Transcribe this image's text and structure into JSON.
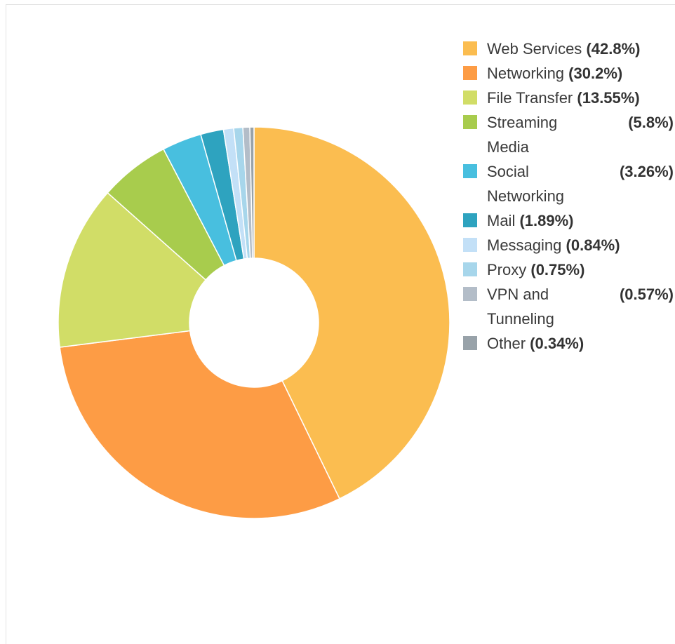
{
  "chart_data": {
    "type": "pie",
    "donut": true,
    "legend_position": "right",
    "categories": [
      "Web Services",
      "Networking",
      "File Transfer",
      "Streaming Media",
      "Social Networking",
      "Mail",
      "Messaging",
      "Proxy",
      "VPN and Tunneling",
      "Other"
    ],
    "values": [
      42.8,
      30.2,
      13.55,
      5.8,
      3.26,
      1.89,
      0.84,
      0.75,
      0.57,
      0.34
    ],
    "value_labels": [
      "(42.8%)",
      "(30.2%)",
      "(13.55%)",
      "(5.8%)",
      "(3.26%)",
      "(1.89%)",
      "(0.84%)",
      "(0.75%)",
      "(0.57%)",
      "(0.34%)"
    ],
    "colors": [
      "#fbbd50",
      "#fd9c45",
      "#d1dd67",
      "#a8cc4d",
      "#48bfdf",
      "#2ea3bf",
      "#c3e0f7",
      "#a7d6eb",
      "#b3bdc8",
      "#98a2a9"
    ],
    "start_angle_deg": 0,
    "direction": "clockwise"
  }
}
